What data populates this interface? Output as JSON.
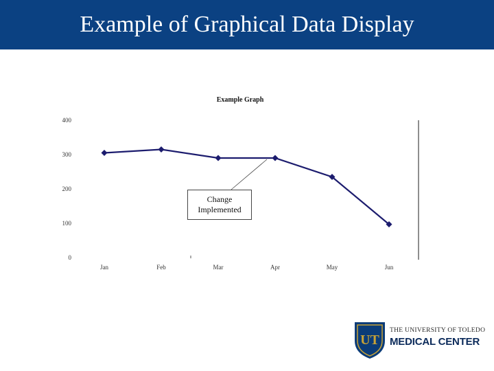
{
  "slide": {
    "title": "Example of Graphical Data Display",
    "header_color": "#0b4182"
  },
  "chart_data": {
    "type": "line",
    "title": "Example Graph",
    "categories": [
      "Jan",
      "Feb",
      "Mar",
      "Apr",
      "May",
      "Jun"
    ],
    "series": [
      {
        "values": [
          305,
          315,
          290,
          290,
          235,
          97
        ],
        "color": "#1c1c6e",
        "marker": "diamond"
      }
    ],
    "y_ticks": [
      "0",
      "100",
      "200",
      "300",
      "400"
    ],
    "ylim": [
      0,
      400
    ],
    "grid": false,
    "annotation": {
      "text": [
        "Change",
        "Implemented"
      ],
      "points_to": "Apr"
    }
  },
  "logo": {
    "line1": "THE UNIVERSITY OF TOLEDO",
    "line2": "MEDICAL CENTER",
    "monogram": "UT",
    "shield_color": "#0b3c78",
    "gold_color": "#c8a235"
  }
}
